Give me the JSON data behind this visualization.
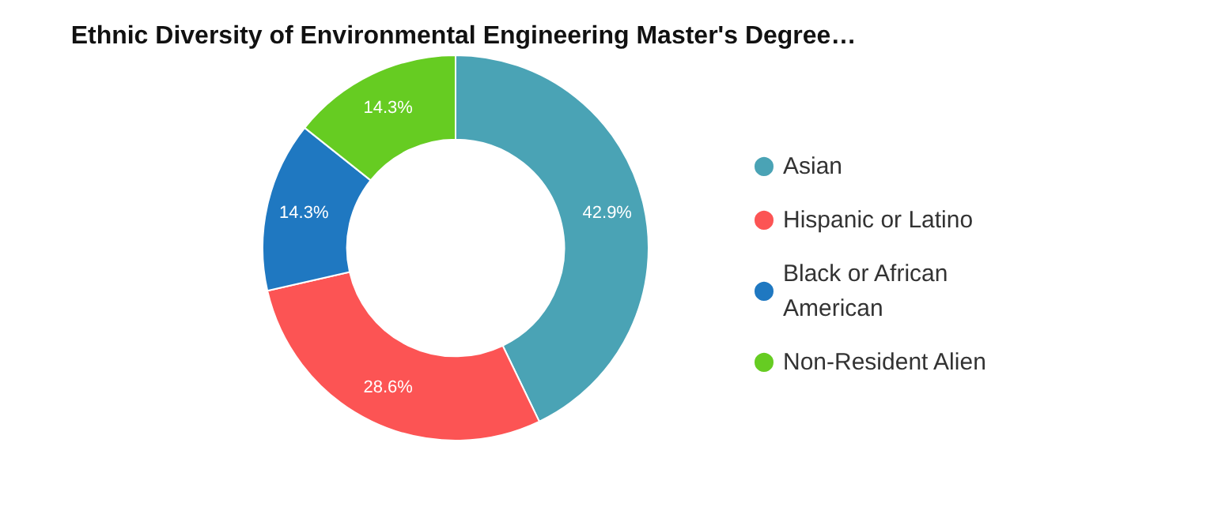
{
  "chart_data": {
    "type": "donut",
    "title": "Ethnic Diversity of Environmental Engineering Master's Degree…",
    "categories": [
      "Asian",
      "Hispanic or Latino",
      "Black or African American",
      "Non-Resident Alien"
    ],
    "values": [
      42.9,
      28.6,
      14.3,
      14.3
    ],
    "value_labels": [
      "42.9%",
      "28.6%",
      "14.3%",
      "14.3%"
    ],
    "colors": [
      "#4aa3b5",
      "#fc5454",
      "#1f78c1",
      "#66cc22"
    ],
    "legend": "right"
  }
}
